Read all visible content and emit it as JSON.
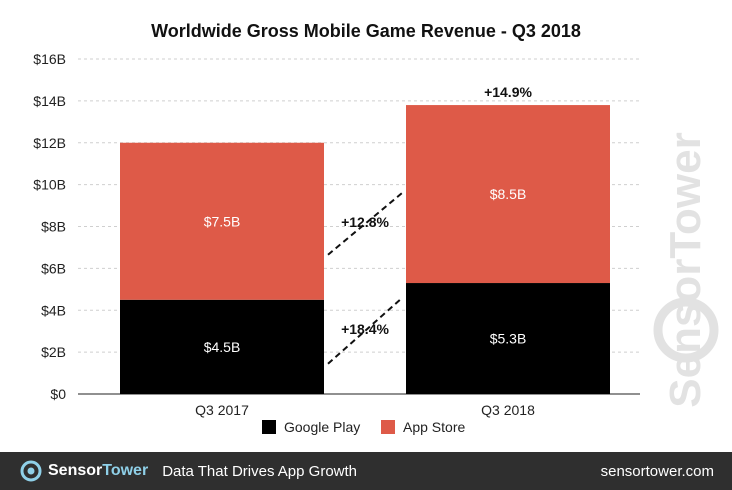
{
  "chart_data": {
    "type": "bar",
    "stacked": true,
    "title": "Worldwide Gross Mobile Game Revenue - Q3 2018",
    "xlabel": "",
    "ylabel": "",
    "categories": [
      "Q3 2017",
      "Q3 2018"
    ],
    "ylim": [
      0,
      16
    ],
    "yticks": [
      "$0",
      "$2B",
      "$4B",
      "$6B",
      "$8B",
      "$10B",
      "$12B",
      "$14B",
      "$16B"
    ],
    "grid": true,
    "legend_position": "bottom",
    "series": [
      {
        "name": "Google Play",
        "values": [
          4.5,
          5.3
        ],
        "labels": [
          "$4.5B",
          "$5.3B"
        ],
        "color": "#000000"
      },
      {
        "name": "App Store",
        "values": [
          7.5,
          8.5
        ],
        "labels": [
          "$7.5B",
          "$8.5B"
        ],
        "color": "#de5a48"
      }
    ],
    "annotations": {
      "google_play_growth": "+18.4%",
      "app_store_growth": "+12.8%",
      "total_growth": "+14.9%"
    }
  },
  "watermark": "SensorTower",
  "footer": {
    "brand_sensor": "Sensor",
    "brand_tower": "Tower",
    "tagline": "Data That Drives App Growth",
    "site": "sensortower.com"
  }
}
